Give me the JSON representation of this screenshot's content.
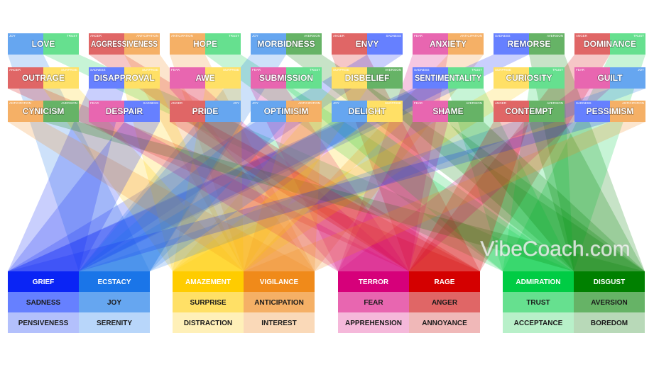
{
  "watermark": "VibeCoach.com",
  "dyads": [
    {
      "left": "JOY",
      "right": "TRUST",
      "name": "LOVE"
    },
    {
      "left": "ANGER",
      "right": "ANTICIPATION",
      "name": "AGGRESSIVENESS"
    },
    {
      "left": "ANTICIPATION",
      "right": "TRUST",
      "name": "HOPE"
    },
    {
      "left": "JOY",
      "right": "AVERSION",
      "name": "MORBIDNESS"
    },
    {
      "left": "ANGER",
      "right": "SADNESS",
      "name": "ENVY"
    },
    {
      "left": "FEAR",
      "right": "ANTICIPATION",
      "name": "ANXIETY"
    },
    {
      "left": "SADNESS",
      "right": "AVERSION",
      "name": "REMORSE"
    },
    {
      "left": "ANGER",
      "right": "TRUST",
      "name": "DOMINANCE"
    },
    {
      "left": "ANGER",
      "right": "SURPRISE",
      "name": "OUTRAGE"
    },
    {
      "left": "SADNESS",
      "right": "SURPRISE",
      "name": "DISAPPROVAL"
    },
    {
      "left": "FEAR",
      "right": "SURPRISE",
      "name": "AWE"
    },
    {
      "left": "FEAR",
      "right": "TRUST",
      "name": "SUBMISSION"
    },
    {
      "left": "SURPRISE",
      "right": "AVERSION",
      "name": "DISBELIEF"
    },
    {
      "left": "SADNESS",
      "right": "TRUST",
      "name": "SENTIMENTALITY"
    },
    {
      "left": "SURPRISE",
      "right": "TRUST",
      "name": "CURIOSITY"
    },
    {
      "left": "FEAR",
      "right": "JOY",
      "name": "GUILT"
    },
    {
      "left": "ANTICIPATION",
      "right": "AVERSION",
      "name": "CYNICISM"
    },
    {
      "left": "FEAR",
      "right": "SADNESS",
      "name": "DESPAIR"
    },
    {
      "left": "ANGER",
      "right": "JOY",
      "name": "PRIDE"
    },
    {
      "left": "JOY",
      "right": "ANTICIPATION",
      "name": "OPTIMISIM"
    },
    {
      "left": "JOY",
      "right": "SURPRISE",
      "name": "DELIGHT"
    },
    {
      "left": "FEAR",
      "right": "AVERSION",
      "name": "SHAME"
    },
    {
      "left": "ANGER",
      "right": "AVERSION",
      "name": "CONTEMPT"
    },
    {
      "left": "SADNESS",
      "right": "ANTICIPATION",
      "name": "PESSIMISM"
    }
  ],
  "columns": [
    {
      "cells": [
        "GRIEF",
        "SADNESS",
        "PENSIVENESS"
      ],
      "colors": [
        "#0a24f5",
        "#6680ff",
        "#b3c0fc"
      ]
    },
    {
      "cells": [
        "ECSTACY",
        "JOY",
        "SERENITY"
      ],
      "colors": [
        "#1a75e8",
        "#66a6f0",
        "#b8d6fa"
      ]
    },
    {
      "cells": [
        "AMAZEMENT",
        "SURPRISE",
        "DISTRACTION"
      ],
      "colors": [
        "#ffcc00",
        "#ffe066",
        "#fff0b8"
      ]
    },
    {
      "cells": [
        "VIGILANCE",
        "ANTICIPATION",
        "INTEREST"
      ],
      "colors": [
        "#f08a1a",
        "#f5b066",
        "#fad9b8"
      ]
    },
    {
      "cells": [
        "TERROR",
        "FEAR",
        "APPREHENSION"
      ],
      "colors": [
        "#d6007a",
        "#e866b0",
        "#f5b8da"
      ]
    },
    {
      "cells": [
        "RAGE",
        "ANGER",
        "ANNOYANCE"
      ],
      "colors": [
        "#d40000",
        "#e06666",
        "#f0b8b8"
      ]
    },
    {
      "cells": [
        "ADMIRATION",
        "TRUST",
        "ACCEPTANCE"
      ],
      "colors": [
        "#00cc44",
        "#66e08f",
        "#b8f0c9"
      ]
    },
    {
      "cells": [
        "DISGUST",
        "AVERSION",
        "BOREDOM"
      ],
      "colors": [
        "#008000",
        "#66b366",
        "#b8d9b8"
      ]
    }
  ]
}
